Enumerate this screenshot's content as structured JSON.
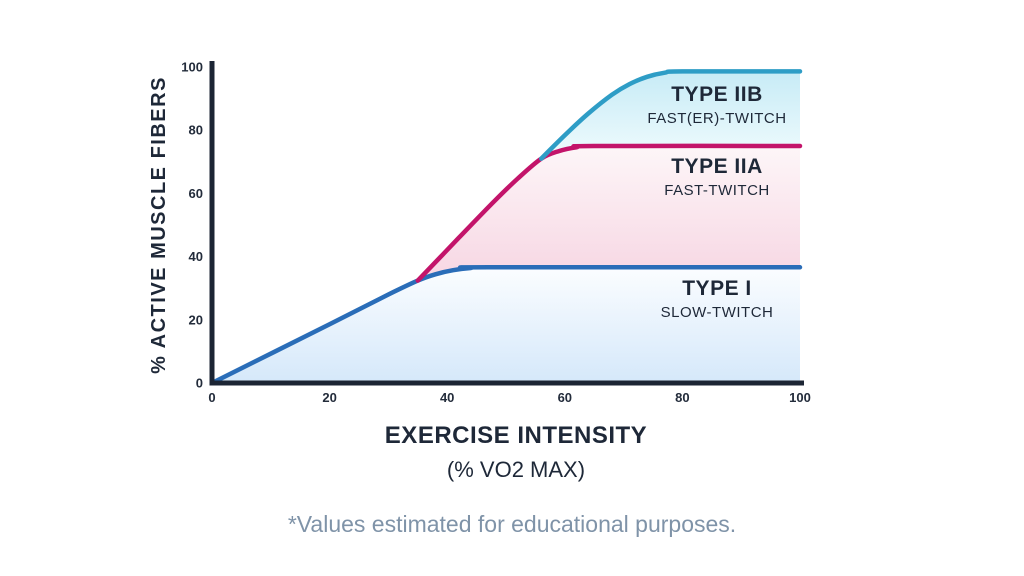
{
  "page": {
    "background": "#ffffff"
  },
  "footer": {
    "note": "*Values estimated for educational purposes.",
    "color": "#7f93a8"
  },
  "chart_data": {
    "type": "area",
    "title": "",
    "xlabel": "EXERCISE INTENSITY",
    "xlabel_sub": "(% VO2 MAX)",
    "ylabel": "% ACTIVE MUSCLE FIBERS",
    "xlim": [
      0,
      100
    ],
    "ylim": [
      0,
      100
    ],
    "x_ticks": [
      0,
      20,
      40,
      60,
      80,
      100
    ],
    "y_ticks": [
      0,
      20,
      40,
      60,
      80,
      100
    ],
    "grid": false,
    "legend_position": "labels-inside-areas",
    "axis_color": "#1c2534",
    "text_color": "#1e2838",
    "series": [
      {
        "name": "TYPE I",
        "sublabel": "SLOW-TWITCH",
        "line_color": "#2a6db8",
        "fill_top": "#fbfdff",
        "fill_bottom": "#d5e8fa",
        "plateau_value": 36.6,
        "points": [
          [
            0,
            0
          ],
          [
            20,
            18.6
          ],
          [
            30,
            28
          ],
          [
            35,
            32.4
          ],
          [
            38,
            34.4
          ],
          [
            41,
            35.7
          ],
          [
            44,
            36.4
          ],
          [
            47,
            36.6
          ],
          [
            100,
            36.6
          ]
        ]
      },
      {
        "name": "TYPE IIA",
        "sublabel": "FAST-TWITCH",
        "line_color": "#c3146a",
        "fill_top": "#fdf6f8",
        "fill_bottom": "#f7d6e3",
        "plateau_value": 75,
        "points": [
          [
            35,
            32.4
          ],
          [
            42,
            46
          ],
          [
            48,
            57.5
          ],
          [
            52,
            64.7
          ],
          [
            56,
            71
          ],
          [
            59,
            73.4
          ],
          [
            62,
            74.6
          ],
          [
            65,
            75
          ],
          [
            100,
            75
          ]
        ]
      },
      {
        "name": "TYPE IIB",
        "sublabel": "FAST(ER)-TWITCH",
        "line_color": "#2e9dc6",
        "fill_top": "#c7ebf6",
        "fill_bottom": "#effbfd",
        "plateau_value": 98.6,
        "points": [
          [
            56,
            71
          ],
          [
            60,
            78.4
          ],
          [
            64,
            85.3
          ],
          [
            68,
            91.2
          ],
          [
            71,
            94.6
          ],
          [
            74,
            96.9
          ],
          [
            77,
            98.2
          ],
          [
            80,
            98.6
          ],
          [
            100,
            98.6
          ]
        ]
      }
    ]
  }
}
